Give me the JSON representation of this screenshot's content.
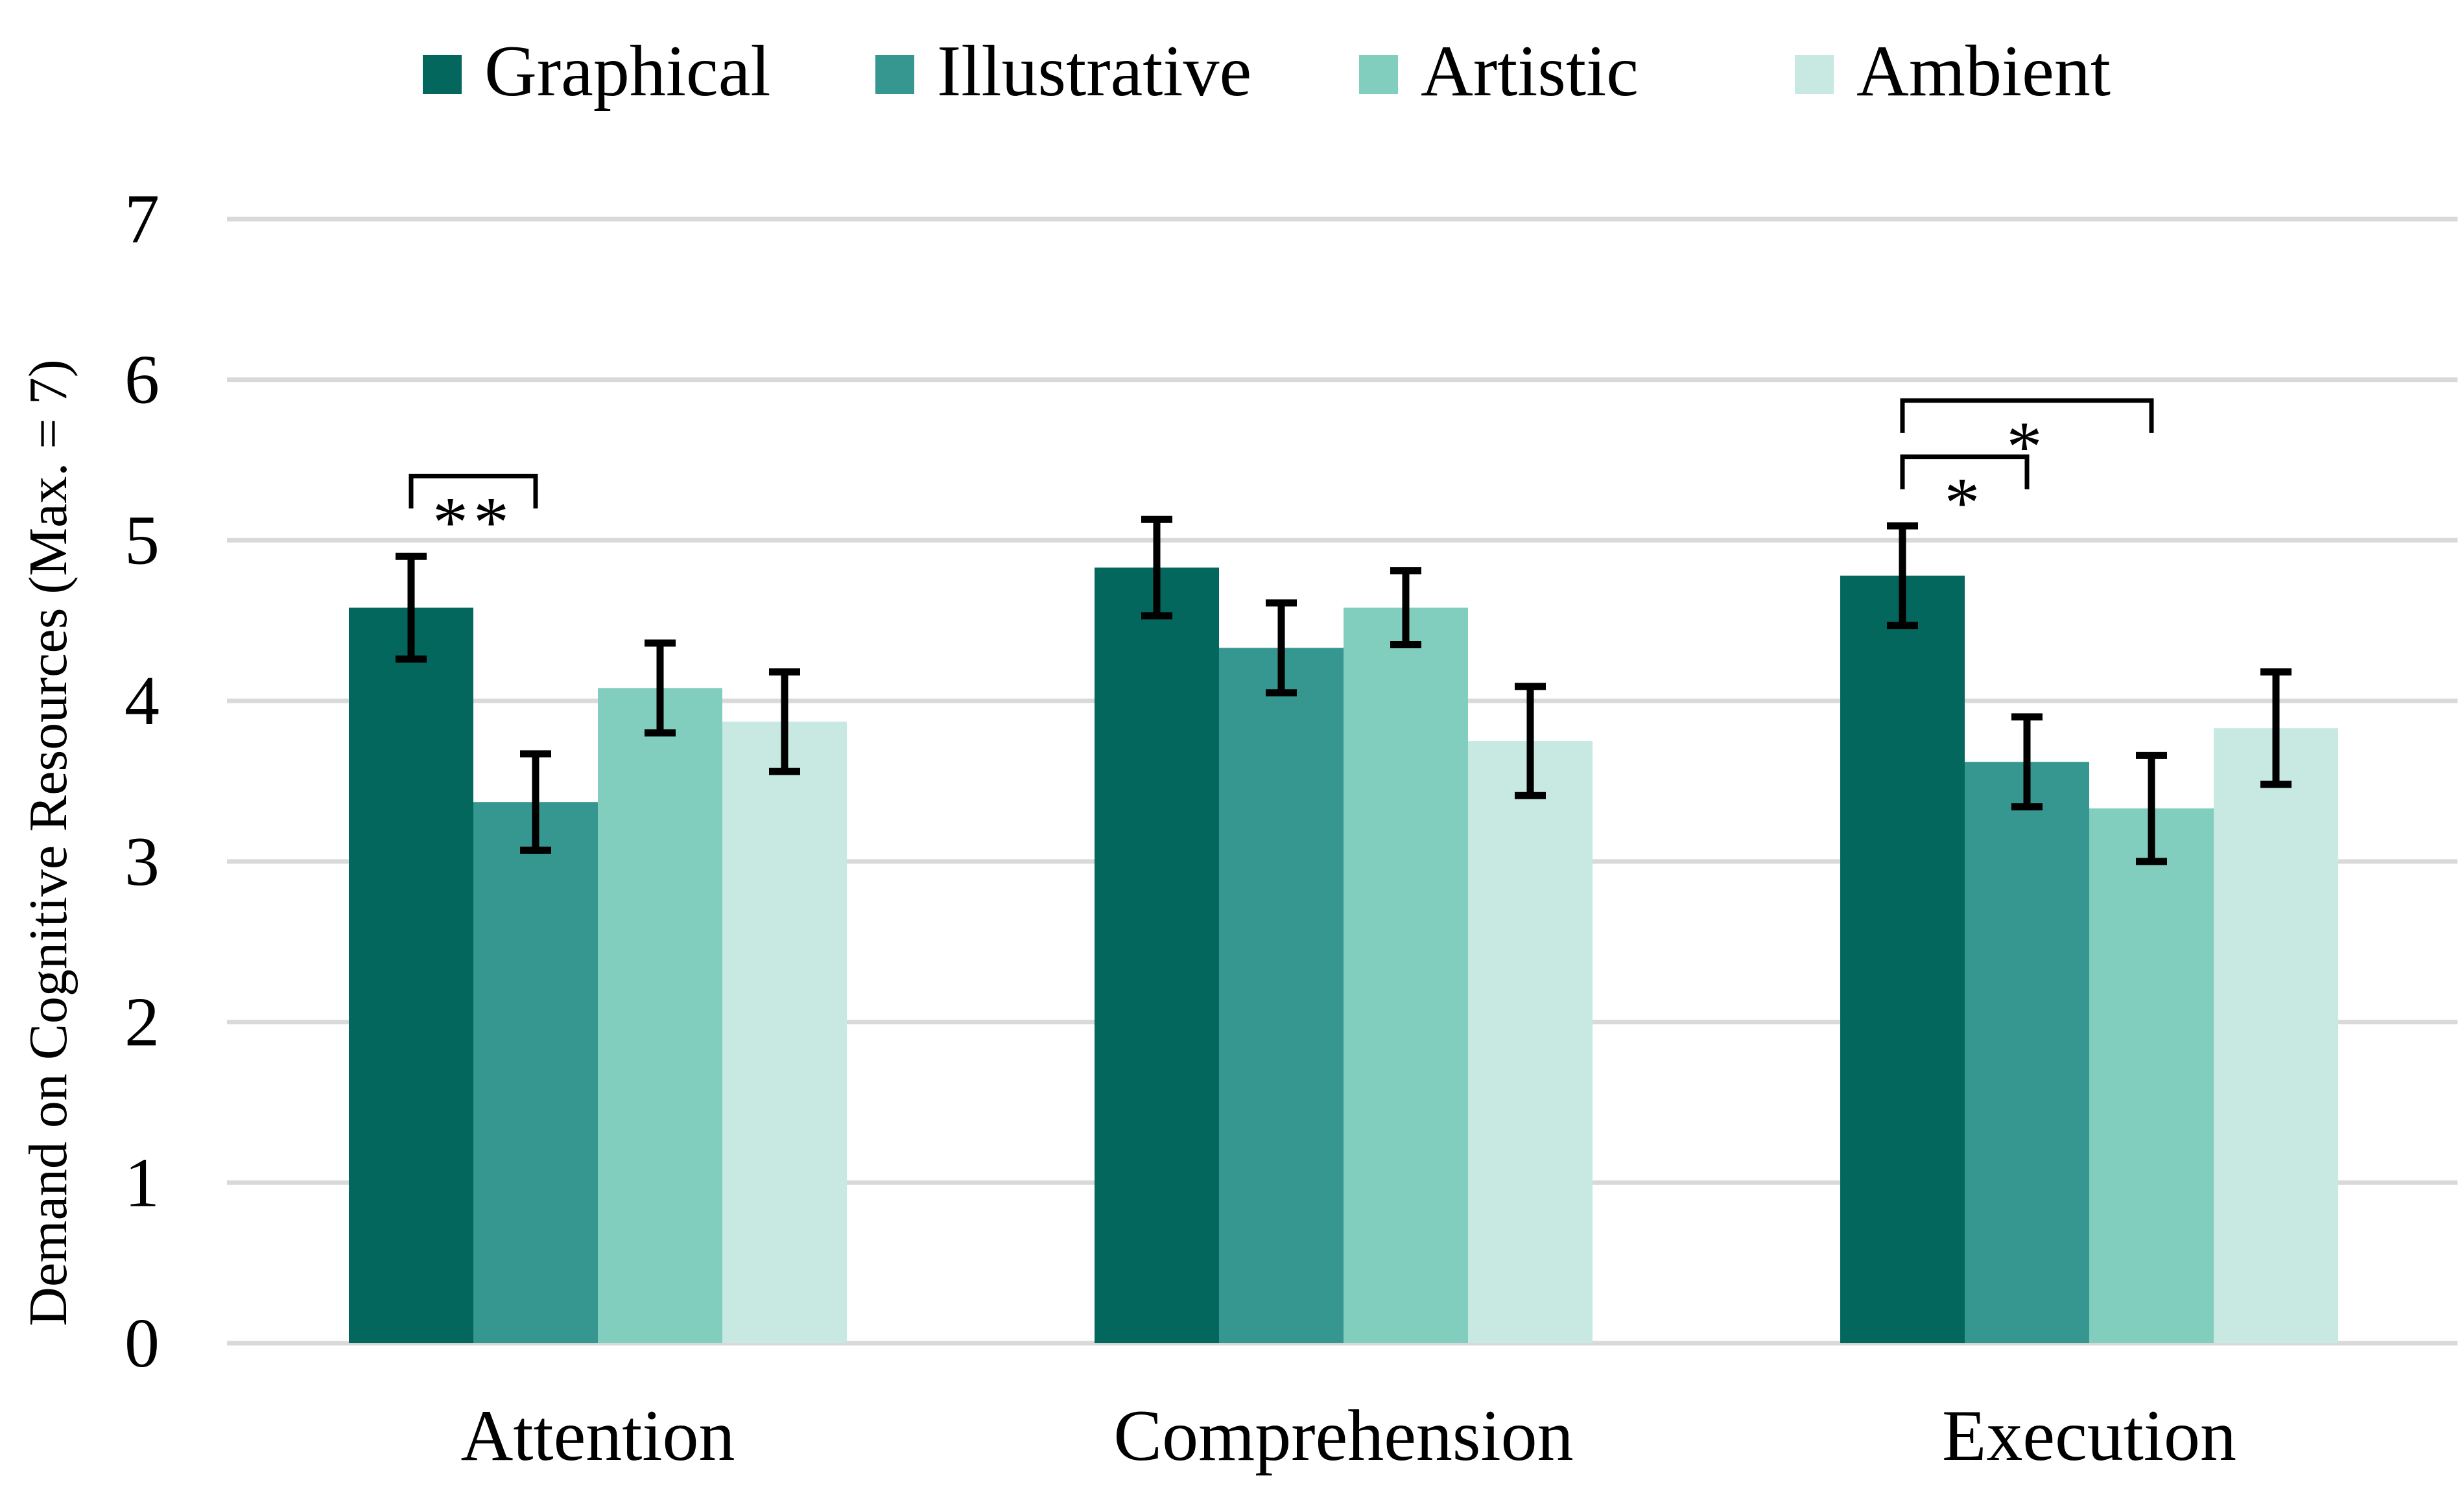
{
  "chart_data": {
    "type": "bar",
    "title": "",
    "xlabel": "",
    "ylabel": "Demand on Cognitive Resources (Max. = 7)",
    "ylim": [
      0,
      7
    ],
    "yticks": [
      "0",
      "1",
      "2",
      "3",
      "4",
      "5",
      "6",
      "7"
    ],
    "grid": true,
    "legend_position": "top-center",
    "categories": [
      "Attention",
      "Comprehension",
      "Execution"
    ],
    "series": [
      {
        "name": "Graphical",
        "color": "#03675e",
        "values": [
          4.58,
          4.83,
          4.78
        ],
        "errors": [
          0.32,
          0.3,
          0.31
        ]
      },
      {
        "name": "Illustrative",
        "color": "#369690",
        "values": [
          3.37,
          4.33,
          3.62
        ],
        "errors": [
          0.3,
          0.28,
          0.28
        ]
      },
      {
        "name": "Artistic",
        "color": "#81cdbe",
        "values": [
          4.08,
          4.58,
          3.33
        ],
        "errors": [
          0.28,
          0.23,
          0.33
        ]
      },
      {
        "name": "Ambient",
        "color": "#c7e9e2",
        "values": [
          3.87,
          3.75,
          3.83
        ],
        "errors": [
          0.31,
          0.34,
          0.35
        ]
      }
    ],
    "significance": [
      {
        "category": "Attention",
        "from": "Graphical",
        "to": "Illustrative",
        "y": 5.4,
        "label": "**"
      },
      {
        "category": "Execution",
        "from": "Graphical",
        "to": "Illustrative",
        "y": 5.52,
        "label": "*"
      },
      {
        "category": "Execution",
        "from": "Graphical",
        "to": "Artistic",
        "y": 5.87,
        "label": "*"
      }
    ]
  }
}
